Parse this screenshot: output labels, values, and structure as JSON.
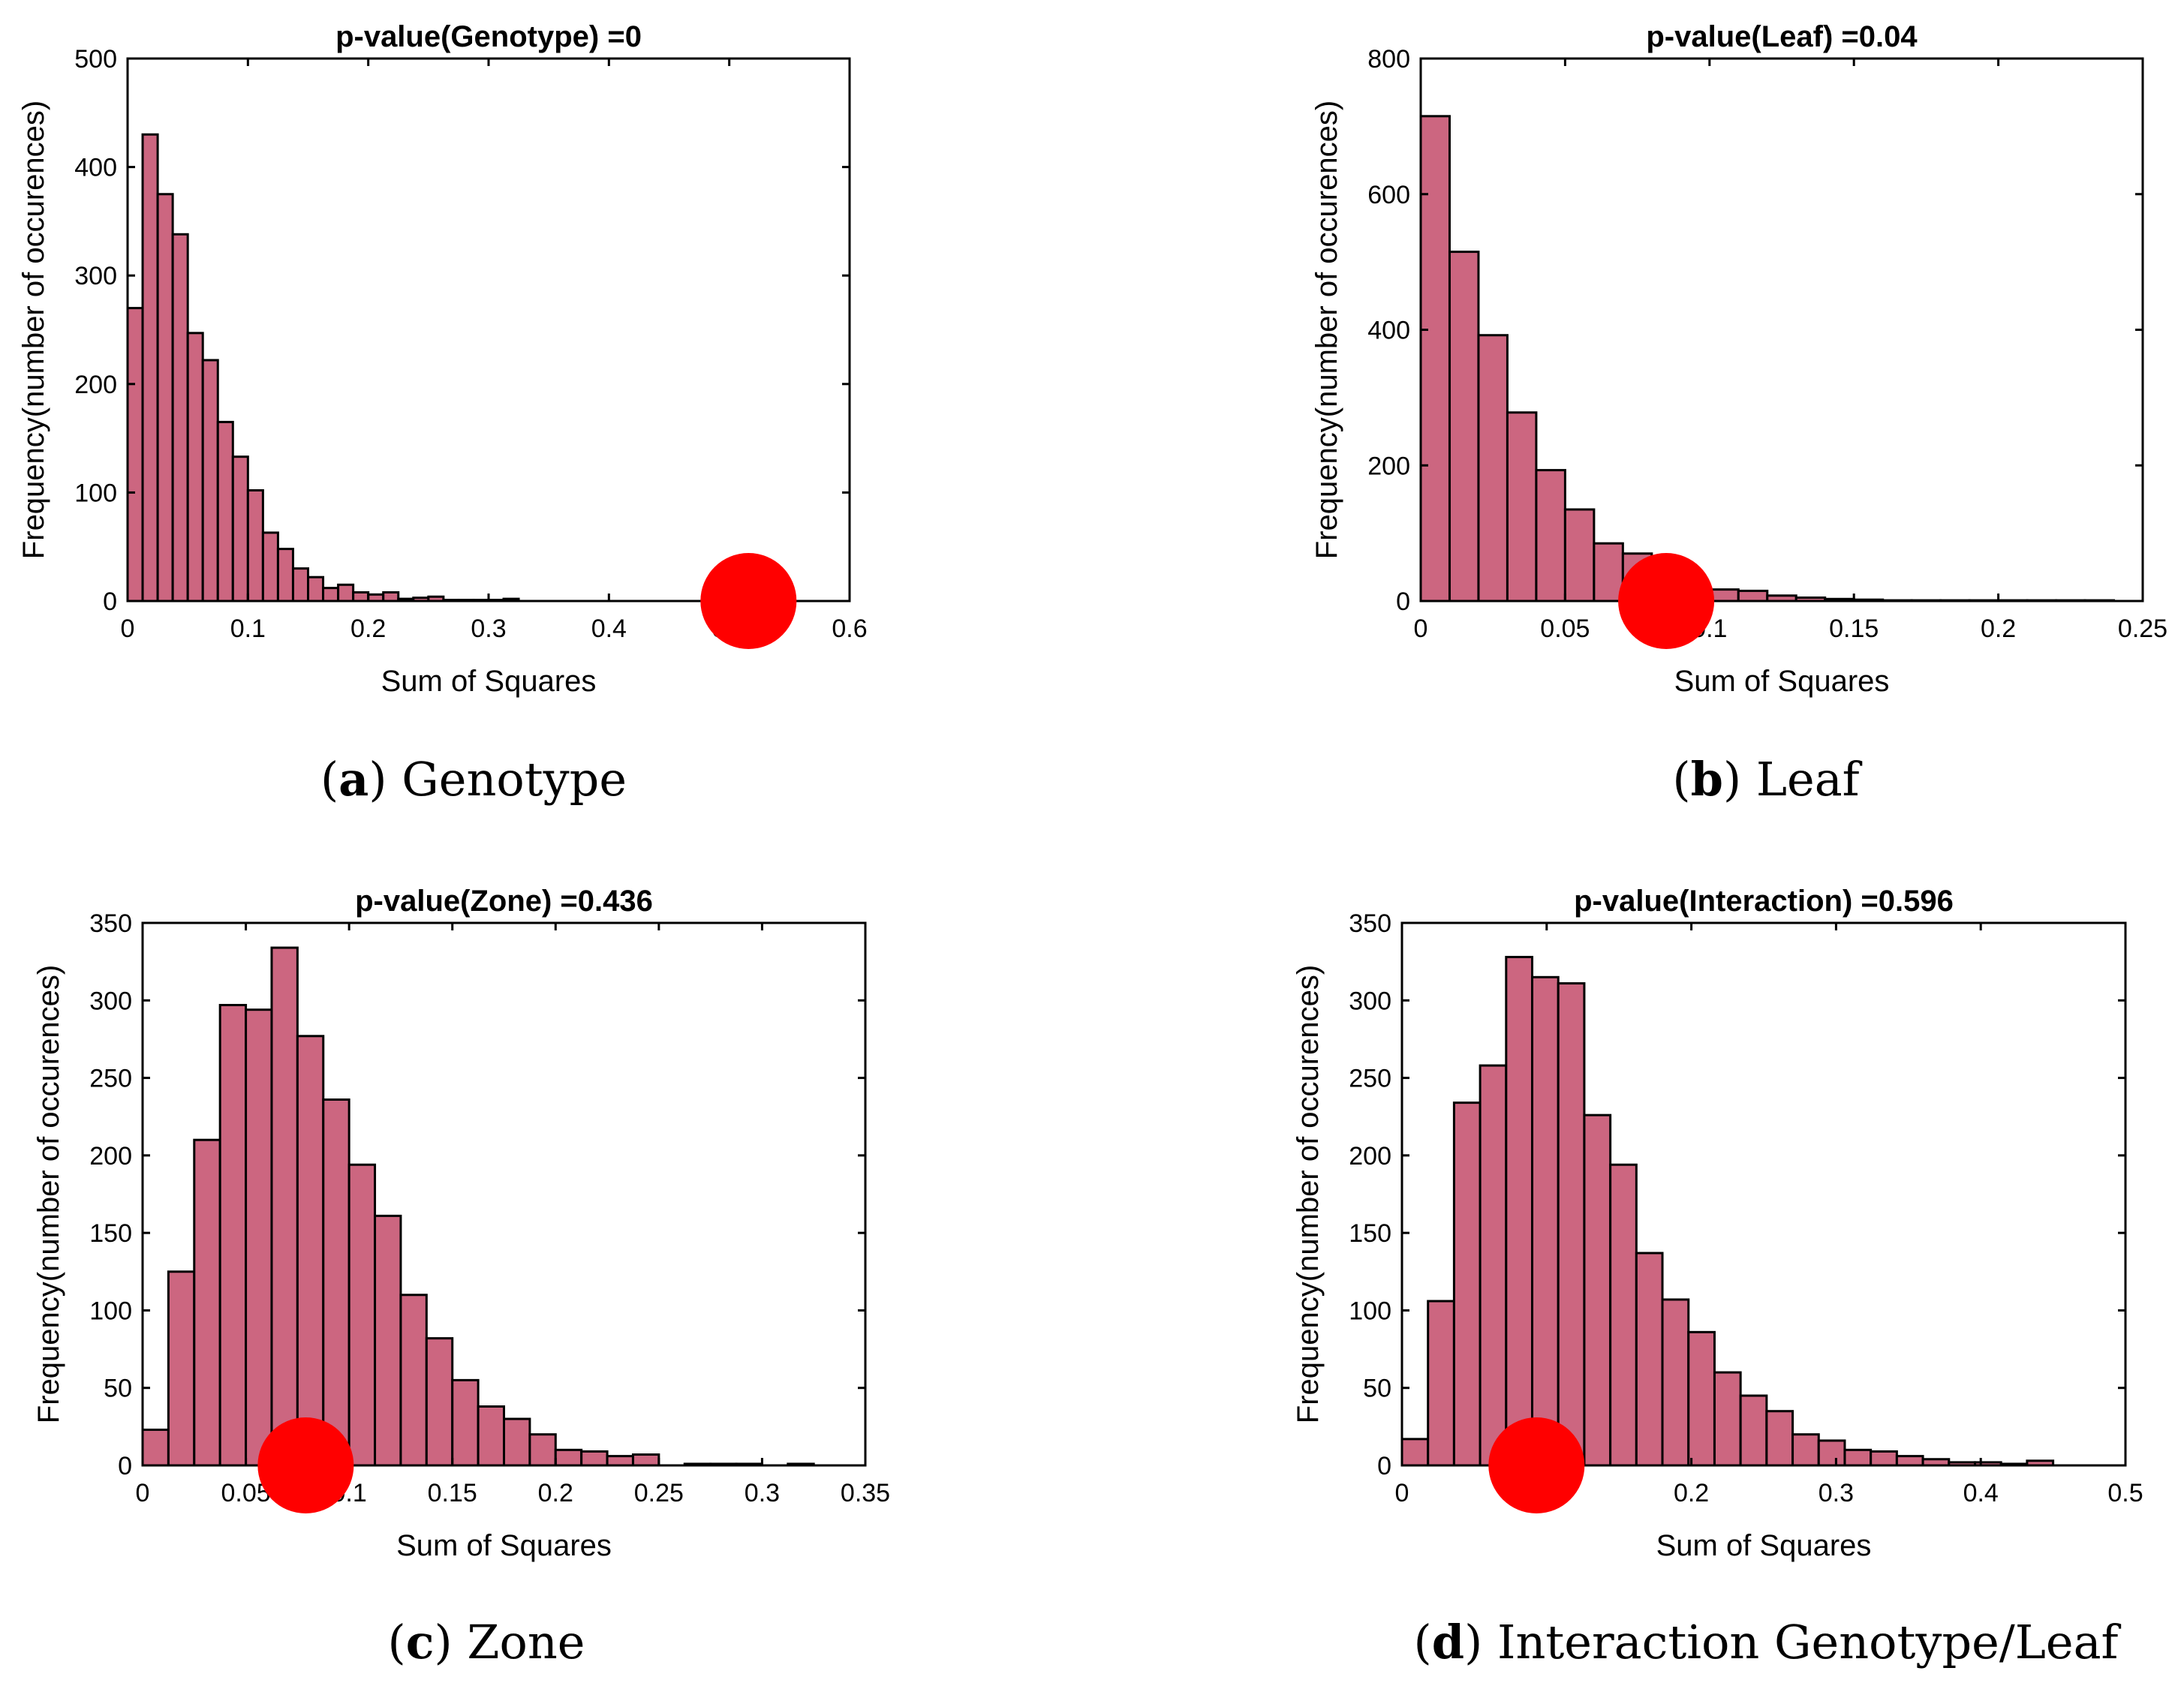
{
  "colors": {
    "bar": "#CC6680",
    "marker": "#FF0000",
    "edge": "#000000"
  },
  "chart_data": [
    {
      "type": "bar",
      "title": "p-value(Genotype) =0",
      "xlabel": "Sum of Squares",
      "ylabel": "Frequency(number of occurences)",
      "caption": {
        "letter": "a",
        "text": "Genotype"
      },
      "xlim": [
        0,
        0.6
      ],
      "ylim": [
        0,
        500
      ],
      "xticks": [
        0,
        0.1,
        0.2,
        0.3,
        0.4,
        0.5,
        0.6
      ],
      "xtick_labels": [
        "0",
        "0.1",
        "0.2",
        "0.3",
        "0.4",
        "0.5",
        "0.6"
      ],
      "yticks": [
        0,
        100,
        200,
        300,
        400,
        500
      ],
      "ytick_labels": [
        "0",
        "100",
        "200",
        "300",
        "400",
        "500"
      ],
      "bin_width": 0.0125,
      "bin_start": 0,
      "values": [
        270,
        430,
        375,
        338,
        247,
        222,
        165,
        133,
        102,
        63,
        48,
        30,
        22,
        12,
        15,
        8,
        6,
        8,
        2,
        3,
        4,
        1,
        1,
        1,
        1,
        2,
        0,
        0,
        0,
        0,
        0,
        0,
        0,
        0,
        0,
        0,
        0,
        0,
        0,
        0,
        0,
        0,
        0,
        0,
        0,
        0,
        0
      ],
      "observed": {
        "x": 0.516,
        "y": 0
      }
    },
    {
      "type": "bar",
      "title": "p-value(Leaf) =0.04",
      "xlabel": "Sum of Squares",
      "ylabel": "Frequency(number of occurences)",
      "caption": {
        "letter": "b",
        "text": "Leaf"
      },
      "xlim": [
        0,
        0.25
      ],
      "ylim": [
        0,
        800
      ],
      "xticks": [
        0,
        0.05,
        0.1,
        0.15,
        0.2,
        0.25
      ],
      "xtick_labels": [
        "0",
        "0.05",
        "0.1",
        "0.15",
        "0.2",
        "0.25"
      ],
      "yticks": [
        0,
        200,
        400,
        600,
        800
      ],
      "ytick_labels": [
        "0",
        "200",
        "400",
        "600",
        "800"
      ],
      "bin_width": 0.01,
      "bin_start": 0,
      "values": [
        715,
        515,
        392,
        278,
        193,
        135,
        85,
        70,
        48,
        23,
        17,
        15,
        8,
        5,
        3,
        2,
        1,
        1,
        1,
        1,
        1,
        1,
        1,
        1
      ],
      "observed": {
        "x": 0.085,
        "y": 0
      }
    },
    {
      "type": "bar",
      "title": "p-value(Zone) =0.436",
      "xlabel": "Sum of Squares",
      "ylabel": "Frequency(number of occurences)",
      "caption": {
        "letter": "c",
        "text": "Zone"
      },
      "xlim": [
        0,
        0.35
      ],
      "ylim": [
        0,
        350
      ],
      "xticks": [
        0,
        0.05,
        0.1,
        0.15,
        0.2,
        0.25,
        0.3,
        0.35
      ],
      "xtick_labels": [
        "0",
        "0.05",
        "0.1",
        "0.15",
        "0.2",
        "0.25",
        "0.3",
        "0.35"
      ],
      "yticks": [
        0,
        50,
        100,
        150,
        200,
        250,
        300,
        350
      ],
      "ytick_labels": [
        "0",
        "50",
        "100",
        "150",
        "200",
        "250",
        "300",
        "350"
      ],
      "bin_width": 0.0125,
      "bin_start": 0,
      "values": [
        23,
        125,
        210,
        297,
        294,
        334,
        277,
        236,
        194,
        161,
        110,
        82,
        55,
        38,
        30,
        20,
        10,
        9,
        6,
        7,
        0,
        1,
        1,
        1,
        0,
        1
      ],
      "observed": {
        "x": 0.079,
        "y": 0
      }
    },
    {
      "type": "bar",
      "title": "p-value(Interaction) =0.596",
      "xlabel": "Sum of Squares",
      "ylabel": "Frequency(number of occurences)",
      "caption": {
        "letter": "d",
        "text": "Interaction Genotype/Leaf"
      },
      "xlim": [
        0,
        0.5
      ],
      "ylim": [
        0,
        350
      ],
      "xticks": [
        0,
        0.1,
        0.2,
        0.3,
        0.4,
        0.5
      ],
      "xtick_labels": [
        "0",
        "0.1",
        "0.2",
        "0.3",
        "0.4",
        "0.5"
      ],
      "yticks": [
        0,
        50,
        100,
        150,
        200,
        250,
        300,
        350
      ],
      "ytick_labels": [
        "0",
        "50",
        "100",
        "150",
        "200",
        "250",
        "300",
        "350"
      ],
      "bin_width": 0.018,
      "bin_start": 0,
      "values": [
        17,
        106,
        234,
        258,
        328,
        315,
        311,
        226,
        194,
        137,
        107,
        86,
        60,
        45,
        35,
        20,
        16,
        10,
        9,
        6,
        4,
        2,
        2,
        1,
        3
      ],
      "observed": {
        "x": 0.093,
        "y": 0
      }
    }
  ]
}
